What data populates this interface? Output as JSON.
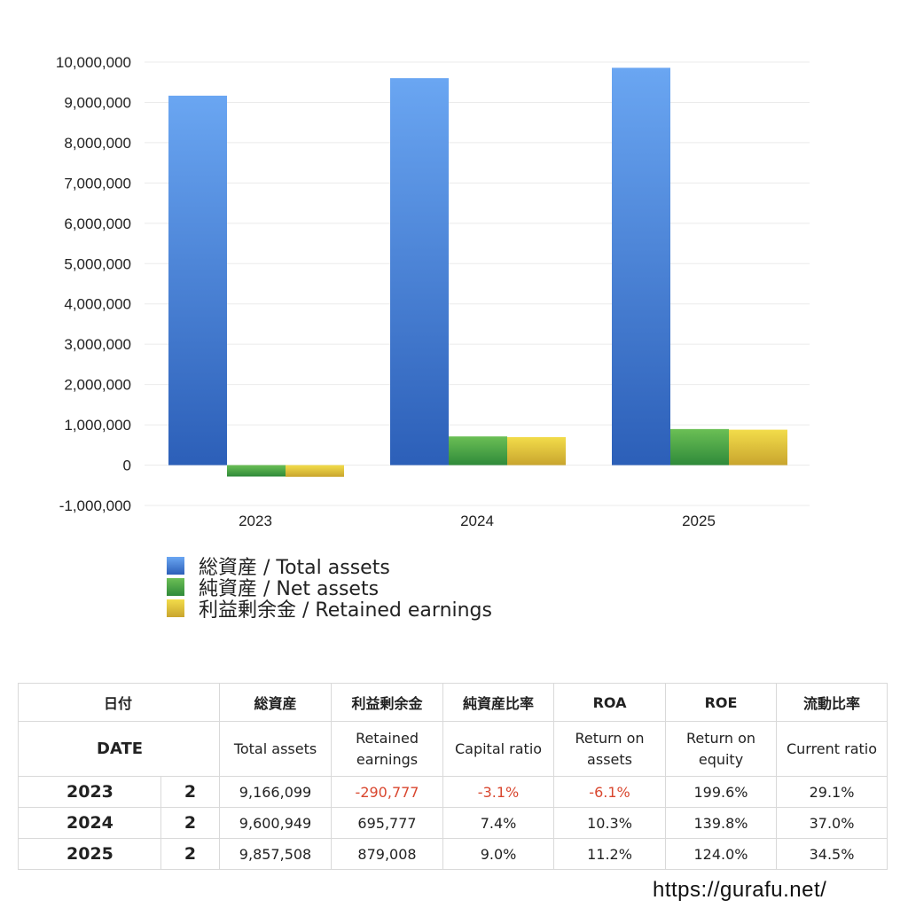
{
  "chart_data": {
    "type": "bar",
    "categories": [
      "2023",
      "2024",
      "2025"
    ],
    "series": [
      {
        "name": "総資産 / Total assets",
        "values": [
          9166099,
          9600949,
          9857508
        ]
      },
      {
        "name": "純資産 / Net assets",
        "values": [
          -284000,
          712000,
          895000
        ]
      },
      {
        "name": "利益剰余金 / Retained earnings",
        "values": [
          -290777,
          695777,
          879008
        ]
      }
    ],
    "ylim": [
      -1000000,
      10000000
    ],
    "yticks": [
      "10,000,000",
      "9,000,000",
      "8,000,000",
      "7,000,000",
      "6,000,000",
      "5,000,000",
      "4,000,000",
      "3,000,000",
      "2,000,000",
      "1,000,000",
      "0",
      "-1,000,000"
    ],
    "grid": true,
    "legend_position": "bottom-left"
  },
  "colors": {
    "total_top": "#6aa6f2",
    "total_bottom": "#2c5fb8",
    "net_top": "#6bbf55",
    "net_bottom": "#2f8a3a",
    "ret_top": "#f2dc4a",
    "ret_bottom": "#c9a52e"
  },
  "legend": [
    {
      "label": "総資産 / Total assets"
    },
    {
      "label": "純資産 / Net assets"
    },
    {
      "label": "利益剰余金 / Retained earnings"
    }
  ],
  "table": {
    "header_jp": {
      "date": "日付",
      "total": "総資産",
      "retained": "利益剰余金",
      "capital": "純資産比率",
      "roa": "ROA",
      "roe": "ROE",
      "current": "流動比率"
    },
    "header_en": {
      "date": "DATE",
      "total": "Total assets",
      "retained": "Retained earnings",
      "capital": "Capital ratio",
      "roa": "Return on assets",
      "roe": "Return on equity",
      "current": "Current ratio"
    },
    "rows": [
      {
        "year": "2023",
        "q": "2",
        "total": "9,166,099",
        "retained": "-290,777",
        "capital": "-3.1%",
        "roa": "-6.1%",
        "roe": "199.6%",
        "current": "29.1%"
      },
      {
        "year": "2024",
        "q": "2",
        "total": "9,600,949",
        "retained": "695,777",
        "capital": "7.4%",
        "roa": "10.3%",
        "roe": "139.8%",
        "current": "37.0%"
      },
      {
        "year": "2025",
        "q": "2",
        "total": "9,857,508",
        "retained": "879,008",
        "capital": "9.0%",
        "roa": "11.2%",
        "roe": "124.0%",
        "current": "34.5%"
      }
    ]
  },
  "footer": "https://gurafu.net/"
}
